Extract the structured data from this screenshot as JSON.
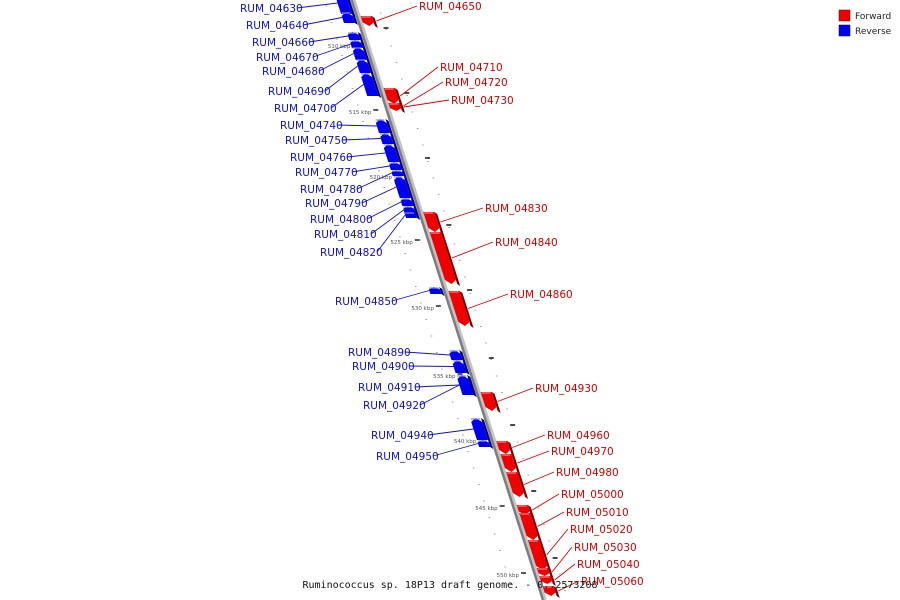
{
  "caption": "Ruminococcus sp. 18P13 draft genome. - 0..2573208",
  "legend": [
    {
      "label": "Forward",
      "color": "#ee0000"
    },
    {
      "label": "Reverse",
      "color": "#0000ee"
    }
  ],
  "kbp_marks": [
    "510 kbp",
    "515 kbp",
    "520 kbp",
    "525 kbp",
    "530 kbp",
    "535 kbp",
    "540 kbp",
    "545 kbp",
    "550 kbp"
  ],
  "genes": [
    {
      "name": "RUM_04630",
      "strand": "reverse"
    },
    {
      "name": "RUM_04640",
      "strand": "reverse"
    },
    {
      "name": "RUM_04650",
      "strand": "forward"
    },
    {
      "name": "RUM_04660",
      "strand": "reverse"
    },
    {
      "name": "RUM_04670",
      "strand": "reverse"
    },
    {
      "name": "RUM_04680",
      "strand": "reverse"
    },
    {
      "name": "RUM_04690",
      "strand": "reverse"
    },
    {
      "name": "RUM_04700",
      "strand": "reverse"
    },
    {
      "name": "RUM_04710",
      "strand": "forward"
    },
    {
      "name": "RUM_04720",
      "strand": "forward"
    },
    {
      "name": "RUM_04730",
      "strand": "forward"
    },
    {
      "name": "RUM_04740",
      "strand": "reverse"
    },
    {
      "name": "RUM_04750",
      "strand": "reverse"
    },
    {
      "name": "RUM_04760",
      "strand": "reverse"
    },
    {
      "name": "RUM_04770",
      "strand": "reverse"
    },
    {
      "name": "RUM_04780",
      "strand": "reverse"
    },
    {
      "name": "RUM_04790",
      "strand": "reverse"
    },
    {
      "name": "RUM_04800",
      "strand": "reverse"
    },
    {
      "name": "RUM_04810",
      "strand": "reverse"
    },
    {
      "name": "RUM_04820",
      "strand": "reverse"
    },
    {
      "name": "RUM_04830",
      "strand": "forward"
    },
    {
      "name": "RUM_04840",
      "strand": "forward"
    },
    {
      "name": "RUM_04850",
      "strand": "reverse"
    },
    {
      "name": "RUM_04860",
      "strand": "forward"
    },
    {
      "name": "RUM_04890",
      "strand": "reverse"
    },
    {
      "name": "RUM_04900",
      "strand": "reverse"
    },
    {
      "name": "RUM_04910",
      "strand": "reverse"
    },
    {
      "name": "RUM_04920",
      "strand": "reverse"
    },
    {
      "name": "RUM_04930",
      "strand": "forward"
    },
    {
      "name": "RUM_04940",
      "strand": "reverse"
    },
    {
      "name": "RUM_04950",
      "strand": "reverse"
    },
    {
      "name": "RUM_04960",
      "strand": "forward"
    },
    {
      "name": "RUM_04970",
      "strand": "forward"
    },
    {
      "name": "RUM_04980",
      "strand": "forward"
    },
    {
      "name": "RUM_05000",
      "strand": "forward"
    },
    {
      "name": "RUM_05010",
      "strand": "forward"
    },
    {
      "name": "RUM_05020",
      "strand": "forward"
    },
    {
      "name": "RUM_05030",
      "strand": "forward"
    },
    {
      "name": "RUM_05040",
      "strand": "forward"
    },
    {
      "name": "RUM_05060",
      "strand": "forward"
    }
  ]
}
